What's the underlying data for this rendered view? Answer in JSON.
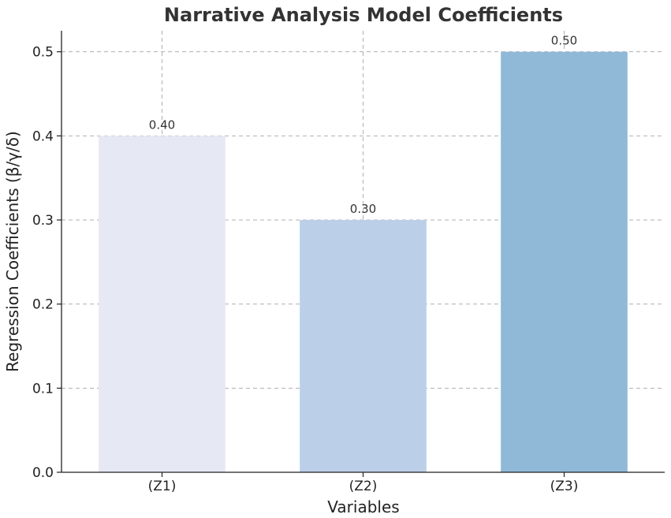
{
  "chart_data": {
    "type": "bar",
    "title": "Narrative Analysis Model Coefficients",
    "xlabel": "Variables",
    "ylabel": "Regression Coefficients (β/γ/δ)",
    "categories": [
      "(Z1)",
      "(Z2)",
      "(Z3)"
    ],
    "values": [
      0.4,
      0.3,
      0.5
    ],
    "data_labels": [
      "0.40",
      "0.30",
      "0.50"
    ],
    "bar_colors": [
      "#e6e9f4",
      "#bbcfe8",
      "#90b9d8"
    ],
    "ylim": [
      0,
      0.525
    ],
    "yticks": [
      0.0,
      0.1,
      0.2,
      0.3,
      0.4,
      0.5
    ],
    "ytick_labels": [
      "0.0",
      "0.1",
      "0.2",
      "0.3",
      "0.4",
      "0.5"
    ],
    "grid": true
  }
}
